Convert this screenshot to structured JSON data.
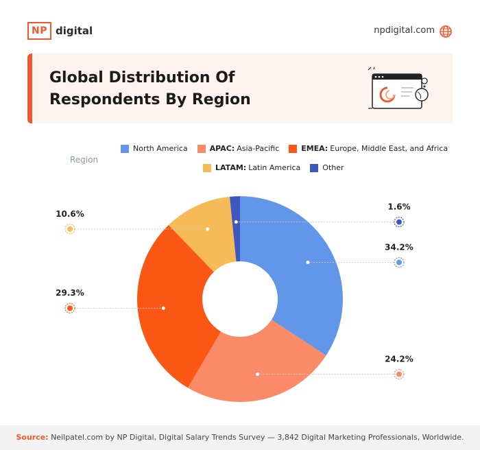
{
  "brand": {
    "logo_box": "NP",
    "logo_text": "digital",
    "site": "npdigital.com"
  },
  "title": "Global Distribution Of Respondents By Region",
  "legend": {
    "title": "Region",
    "items": [
      {
        "abbr": "",
        "label": "North America",
        "color": "#6196e8"
      },
      {
        "abbr": "APAC:",
        "label": "Asia-Pacific",
        "color": "#fb8a68"
      },
      {
        "abbr": "EMEA:",
        "label": "Europe, Middle East, and Africa",
        "color": "#fa5714"
      },
      {
        "abbr": "LATAM:",
        "label": "Latin America",
        "color": "#f6bb56"
      },
      {
        "abbr": "",
        "label": "Other",
        "color": "#3f58bf"
      }
    ]
  },
  "chart_data": {
    "type": "pie",
    "donut": true,
    "categories": [
      "North America",
      "APAC: Asia-Pacific",
      "EMEA: Europe, Middle East, and Africa",
      "LATAM: Latin America",
      "Other"
    ],
    "values": [
      34.2,
      24.2,
      29.3,
      10.6,
      1.6
    ],
    "value_labels": [
      "34.2%",
      "24.2%",
      "29.3%",
      "10.6%",
      "1.6%"
    ],
    "colors": [
      "#6196e8",
      "#fb8a68",
      "#fa5714",
      "#f6bb56",
      "#3f58bf"
    ],
    "legend": "top",
    "title": "Global Distribution Of Respondents By Region"
  },
  "footer": {
    "source_label": "Source:",
    "source_text": "Neilpatel.com by NP Digital, Digital Salary Trends Survey — 3,842 Digital Marketing Professionals, Worldwide."
  }
}
